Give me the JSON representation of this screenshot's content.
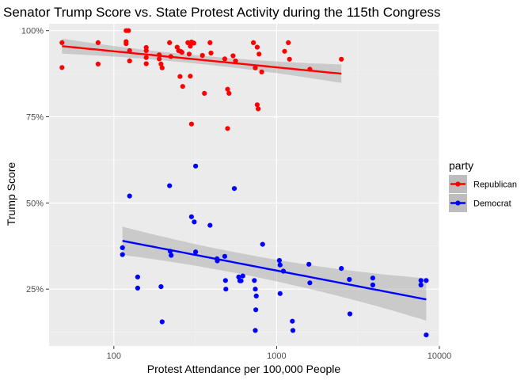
{
  "chart_data": {
    "type": "scatter",
    "title": "Senator Trump Score vs. State Protest Activity during the 115th Congress",
    "xlabel": "Protest Attendance per 100,000 People",
    "ylabel": "Trump Score",
    "x_scale": "log10",
    "xlim": [
      40,
      10000
    ],
    "ylim": [
      0.085,
      1.02
    ],
    "x_ticks": [
      100,
      1000,
      10000
    ],
    "x_tick_labels": [
      "100",
      "1000",
      "10000"
    ],
    "y_ticks": [
      0.25,
      0.5,
      0.75,
      1.0
    ],
    "y_tick_labels": [
      "25%",
      "50%",
      "75%",
      "100%"
    ],
    "grid": true,
    "legend": {
      "title": "party",
      "position": "right"
    },
    "series": [
      {
        "name": "Republican",
        "color": "#ff0000",
        "points": [
          [
            48,
            0.965
          ],
          [
            48,
            0.893
          ],
          [
            80,
            0.965
          ],
          [
            80,
            0.903
          ],
          [
            119,
            1.0
          ],
          [
            123,
            1.0
          ],
          [
            119,
            0.968
          ],
          [
            119,
            0.962
          ],
          [
            125,
            0.942
          ],
          [
            125,
            0.912
          ],
          [
            158,
            0.951
          ],
          [
            158,
            0.942
          ],
          [
            158,
            0.922
          ],
          [
            158,
            0.904
          ],
          [
            190,
            0.93
          ],
          [
            190,
            0.918
          ],
          [
            195,
            0.903
          ],
          [
            198,
            0.892
          ],
          [
            220,
            0.965
          ],
          [
            224,
            0.925
          ],
          [
            245,
            0.952
          ],
          [
            250,
            0.942
          ],
          [
            257,
            0.94
          ],
          [
            262,
            0.937
          ],
          [
            255,
            0.867
          ],
          [
            265,
            0.838
          ],
          [
            285,
            0.965
          ],
          [
            290,
            0.932
          ],
          [
            295,
            0.955
          ],
          [
            300,
            0.967
          ],
          [
            310,
            0.964
          ],
          [
            295,
            0.868
          ],
          [
            300,
            0.729
          ],
          [
            350,
            0.928
          ],
          [
            360,
            0.818
          ],
          [
            390,
            0.965
          ],
          [
            395,
            0.935
          ],
          [
            480,
            0.918
          ],
          [
            500,
            0.83
          ],
          [
            510,
            0.818
          ],
          [
            500,
            0.716
          ],
          [
            540,
            0.927
          ],
          [
            560,
            0.912
          ],
          [
            720,
            0.965
          ],
          [
            740,
            0.892
          ],
          [
            760,
            0.952
          ],
          [
            780,
            0.932
          ],
          [
            760,
            0.785
          ],
          [
            770,
            0.773
          ],
          [
            810,
            0.88
          ],
          [
            1120,
            0.94
          ],
          [
            1180,
            0.965
          ],
          [
            1200,
            0.917
          ],
          [
            1600,
            0.888
          ],
          [
            2500,
            0.917
          ]
        ],
        "trend": {
          "start": [
            48,
            0.955
          ],
          "end": [
            2500,
            0.875
          ]
        }
      },
      {
        "name": "Democrat",
        "color": "#0000ff",
        "points": [
          [
            113,
            0.37
          ],
          [
            113,
            0.35
          ],
          [
            125,
            0.52
          ],
          [
            140,
            0.285
          ],
          [
            140,
            0.253
          ],
          [
            195,
            0.257
          ],
          [
            198,
            0.155
          ],
          [
            220,
            0.55
          ],
          [
            222,
            0.36
          ],
          [
            225,
            0.348
          ],
          [
            300,
            0.46
          ],
          [
            312,
            0.445
          ],
          [
            318,
            0.607
          ],
          [
            318,
            0.358
          ],
          [
            390,
            0.435
          ],
          [
            430,
            0.338
          ],
          [
            432,
            0.332
          ],
          [
            480,
            0.345
          ],
          [
            485,
            0.275
          ],
          [
            488,
            0.25
          ],
          [
            550,
            0.542
          ],
          [
            585,
            0.285
          ],
          [
            595,
            0.274
          ],
          [
            605,
            0.274
          ],
          [
            620,
            0.288
          ],
          [
            730,
            0.275
          ],
          [
            740,
            0.25
          ],
          [
            745,
            0.19
          ],
          [
            750,
            0.23
          ],
          [
            740,
            0.13
          ],
          [
            820,
            0.38
          ],
          [
            1040,
            0.333
          ],
          [
            1050,
            0.32
          ],
          [
            1050,
            0.237
          ],
          [
            1100,
            0.302
          ],
          [
            1250,
            0.157
          ],
          [
            1260,
            0.13
          ],
          [
            1580,
            0.322
          ],
          [
            1600,
            0.268
          ],
          [
            2500,
            0.31
          ],
          [
            2800,
            0.278
          ],
          [
            2820,
            0.178
          ],
          [
            3900,
            0.282
          ],
          [
            3900,
            0.262
          ],
          [
            7700,
            0.275
          ],
          [
            7700,
            0.262
          ],
          [
            8300,
            0.275
          ],
          [
            8300,
            0.117
          ]
        ],
        "trend": {
          "start": [
            113,
            0.39
          ],
          "end": [
            8300,
            0.22
          ]
        }
      }
    ]
  }
}
